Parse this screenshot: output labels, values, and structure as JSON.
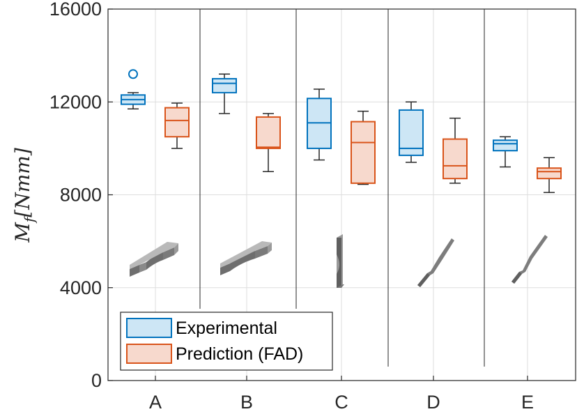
{
  "chart_data": {
    "type": "boxplot",
    "categories": [
      "A",
      "B",
      "C",
      "D",
      "E"
    ],
    "ylabel": "M_f [Nmm]",
    "ylabel_main": "M",
    "ylabel_sub": "f",
    "ylabel_unit": "[Nmm]",
    "ylim": [
      0,
      16000
    ],
    "yticks": [
      0,
      4000,
      8000,
      12000,
      16000
    ],
    "grid": true,
    "legend_position": "bottom-left",
    "series": [
      {
        "name": "Experimental",
        "color": "#0072BD",
        "fill": "#CDE6F5",
        "boxes": [
          {
            "category": "A",
            "whisker_low": 11700,
            "q1": 11900,
            "median": 12100,
            "q3": 12300,
            "whisker_high": 12400,
            "outliers": [
              13200
            ]
          },
          {
            "category": "B",
            "whisker_low": 11500,
            "q1": 12400,
            "median": 12800,
            "q3": 13000,
            "whisker_high": 13200,
            "outliers": []
          },
          {
            "category": "C",
            "whisker_low": 9500,
            "q1": 10000,
            "median": 11100,
            "q3": 12150,
            "whisker_high": 12550,
            "outliers": []
          },
          {
            "category": "D",
            "whisker_low": 9400,
            "q1": 9700,
            "median": 10000,
            "q3": 11650,
            "whisker_high": 12000,
            "outliers": []
          },
          {
            "category": "E",
            "whisker_low": 9200,
            "q1": 9900,
            "median": 10200,
            "q3": 10350,
            "whisker_high": 10500,
            "outliers": []
          }
        ]
      },
      {
        "name": "Prediction (FAD)",
        "color": "#D95319",
        "fill": "#F7D9CD",
        "boxes": [
          {
            "category": "A",
            "whisker_low": 10000,
            "q1": 10500,
            "median": 11200,
            "q3": 11750,
            "whisker_high": 11950,
            "outliers": []
          },
          {
            "category": "B",
            "whisker_low": 9000,
            "q1": 10000,
            "median": 10050,
            "q3": 11350,
            "whisker_high": 11500,
            "outliers": []
          },
          {
            "category": "C",
            "whisker_low": 8450,
            "q1": 8500,
            "median": 10250,
            "q3": 11150,
            "whisker_high": 11600,
            "outliers": []
          },
          {
            "category": "D",
            "whisker_low": 8500,
            "q1": 8700,
            "median": 9250,
            "q3": 10400,
            "whisker_high": 11300,
            "outliers": []
          },
          {
            "category": "E",
            "whisker_low": 8100,
            "q1": 8700,
            "median": 9000,
            "q3": 9150,
            "whisker_high": 9600,
            "outliers": []
          }
        ]
      }
    ],
    "specimen_icons": [
      "specimen-a-icon",
      "specimen-b-icon",
      "specimen-c-icon",
      "specimen-d-icon",
      "specimen-e-icon"
    ]
  }
}
